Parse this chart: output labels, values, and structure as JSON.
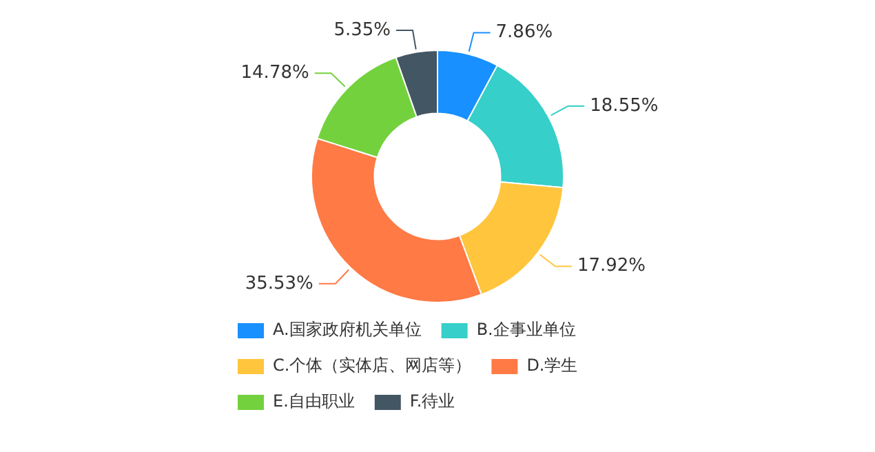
{
  "chart_data": {
    "type": "donut",
    "categories": [
      "A.国家政府机关单位",
      "B.企事业单位",
      "C.个体（实体店、网店等）",
      "D.学生",
      "E.自由职业",
      "F.待业"
    ],
    "values": [
      7.86,
      18.55,
      17.92,
      35.53,
      14.78,
      5.35
    ],
    "colors": [
      "#1890ff",
      "#36cfc9",
      "#ffc53d",
      "#ff7a45",
      "#73d13d",
      "#435664"
    ],
    "value_labels": [
      "7.86%",
      "18.55%",
      "17.92%",
      "35.53%",
      "14.78%",
      "5.35%"
    ],
    "legend": "bottom"
  }
}
